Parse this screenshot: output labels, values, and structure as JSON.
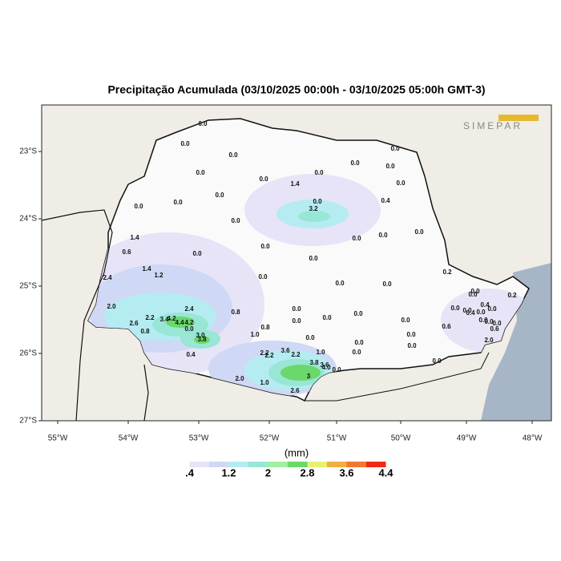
{
  "title": "Precipitação Acumulada (03/10/2025 00:00h - 03/10/2025 05:00h GMT-3)",
  "logo": "SIMEPAR",
  "map": {
    "lat_labels": [
      "23°S",
      "24°S",
      "25°S",
      "26°S",
      "27°S"
    ],
    "lon_labels": [
      "55°W",
      "54°W",
      "53°W",
      "52°W",
      "51°W",
      "50°W",
      "49°W",
      "48°W"
    ],
    "stations": [
      "0.0",
      "0.0",
      "0.0",
      "0.0",
      "0.0",
      "1.4",
      "0.0",
      "0.0",
      "0.0",
      "0.0",
      "0.0",
      "0.0",
      "0.0",
      "0.0",
      "0.0",
      "3.2",
      "0.4",
      "0.0",
      "0.0",
      "0.0",
      "0.0",
      "1.4",
      "0.0",
      "0.6",
      "0.0",
      "0.0",
      "1.4",
      "1.2",
      "2.4",
      "0.0",
      "0.2",
      "0.0",
      "0.0",
      "2.0",
      "2.4",
      "0.8",
      "0.0",
      "0.0",
      "2.2",
      "3.4",
      "4.2",
      "4.4",
      "4.2",
      "2.6",
      "0.8",
      "0.0",
      "0.8",
      "3.0",
      "3.8",
      "1.0",
      "0.0",
      "0.0",
      "0.0",
      "0.0",
      "0.0",
      "0.0",
      "0.0",
      "0.0",
      "0.4",
      "2.2",
      "2.2",
      "3.6",
      "2.2",
      "1.0",
      "3.8",
      "3.6",
      "4.0",
      "0.0",
      "2.0",
      "1.0",
      "3",
      "2.6",
      "0.0",
      "0.0",
      "0.0",
      "0.6",
      "0.4",
      "0.0",
      "0.0",
      "0.4",
      "0.2",
      "0.0",
      "0.0",
      "0.0",
      "0.0",
      "0.6",
      "2.0",
      "0.0"
    ]
  },
  "legend": {
    "unit": "(mm)",
    "labels": [
      ".4",
      "1.2",
      "2",
      "2.8",
      "3.6",
      "4.4"
    ],
    "colors": [
      "#ffffff",
      "#e6e4f6",
      "#cfd8f4",
      "#b4ecf2",
      "#98e6d4",
      "#a0f0a0",
      "#6ad86a",
      "#e8f070",
      "#f0b040",
      "#f07830",
      "#f02818"
    ]
  }
}
